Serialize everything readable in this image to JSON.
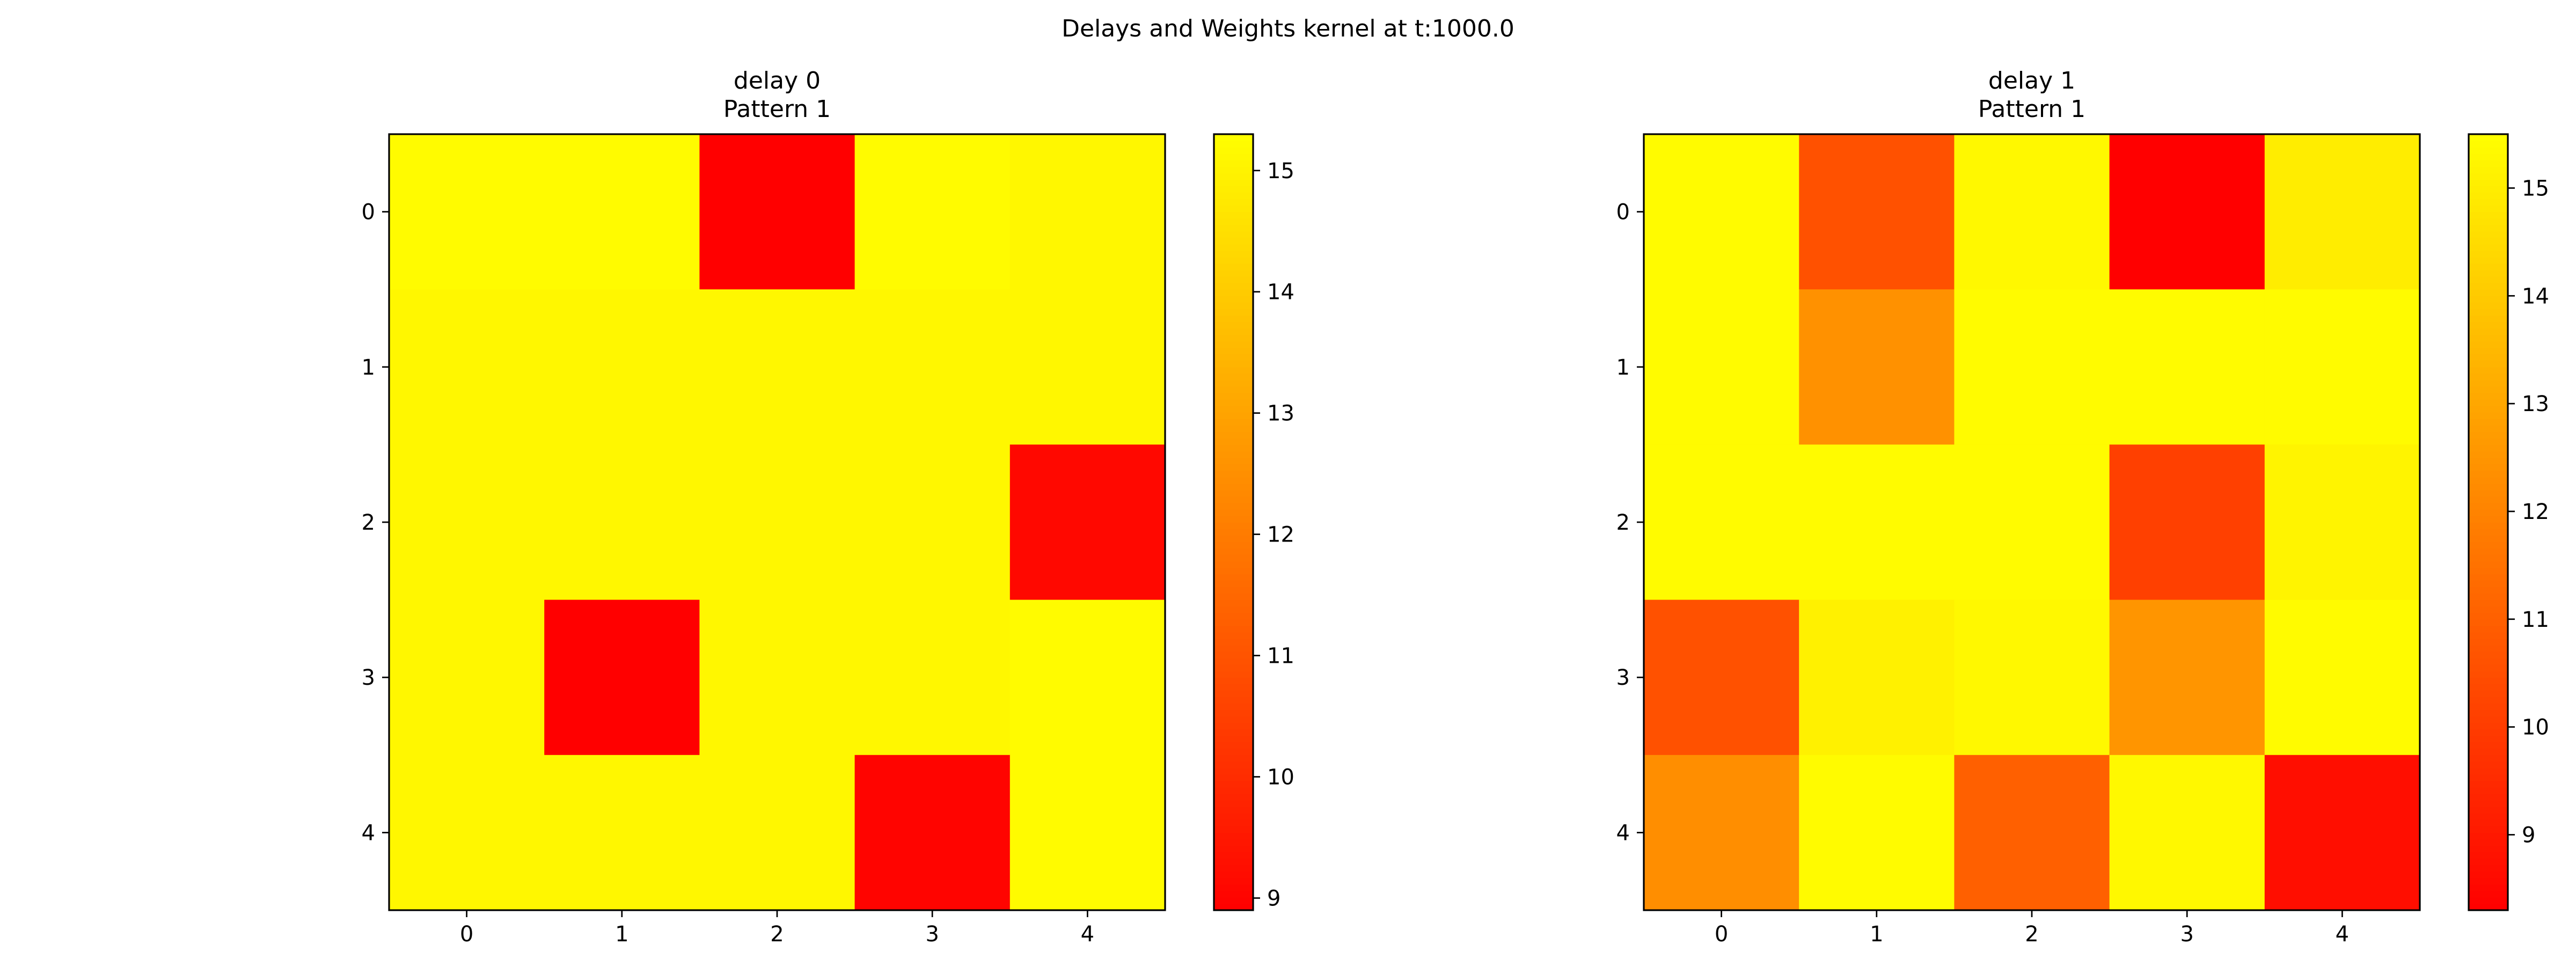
{
  "chart_data": {
    "suptitle": "Delays and Weights kernel at t:1000.0",
    "panels": [
      {
        "type": "heatmap",
        "colormap": "autumn",
        "title_lines": [
          "delay 0",
          "Pattern 1"
        ],
        "x_ticks": [
          "0",
          "1",
          "2",
          "3",
          "4"
        ],
        "y_ticks": [
          "0",
          "1",
          "2",
          "3",
          "4"
        ],
        "values": [
          [
            15.2,
            15.2,
            8.9,
            15.2,
            15.1
          ],
          [
            15.1,
            15.1,
            15.1,
            15.1,
            15.1
          ],
          [
            15.1,
            15.1,
            15.1,
            15.1,
            9.1
          ],
          [
            15.1,
            8.9,
            15.1,
            15.1,
            15.2
          ],
          [
            15.1,
            15.1,
            15.1,
            9.0,
            15.2
          ]
        ],
        "color_range": [
          8.9,
          15.3
        ],
        "colorbar_ticks": [
          9,
          10,
          11,
          12,
          13,
          14,
          15
        ]
      },
      {
        "type": "heatmap",
        "colormap": "autumn",
        "title_lines": [
          "delay 1",
          "Pattern 1"
        ],
        "x_ticks": [
          "0",
          "1",
          "2",
          "3",
          "4"
        ],
        "y_ticks": [
          "0",
          "1",
          "2",
          "3",
          "4"
        ],
        "values": [
          [
            15.4,
            10.6,
            15.3,
            8.3,
            15.0
          ],
          [
            15.4,
            12.4,
            15.4,
            15.4,
            15.4
          ],
          [
            15.4,
            15.4,
            15.4,
            10.1,
            15.2
          ],
          [
            10.6,
            15.1,
            15.3,
            12.5,
            15.4
          ],
          [
            12.3,
            15.4,
            11.0,
            15.3,
            8.7
          ]
        ],
        "color_range": [
          8.3,
          15.5
        ],
        "colorbar_ticks": [
          9,
          10,
          11,
          12,
          13,
          14,
          15
        ]
      }
    ]
  }
}
